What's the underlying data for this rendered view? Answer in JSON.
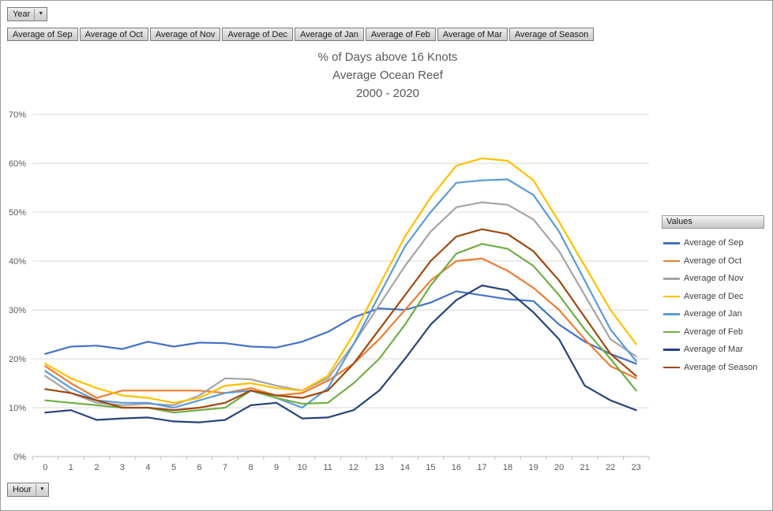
{
  "pivot_controls": {
    "year_button": {
      "label": "Year"
    },
    "hour_button": {
      "label": "Hour"
    },
    "field_buttons": [
      "Average of Sep",
      "Average of Oct",
      "Average of Nov",
      "Average of Dec",
      "Average of Jan",
      "Average of Feb",
      "Average of Mar",
      "Average of Season"
    ]
  },
  "legend": {
    "header": "Values"
  },
  "chart_data": {
    "type": "line",
    "title": "% of Days above 16 Knots",
    "subtitle": "Average Ocean Reef",
    "subtitle2": "2000 - 2020",
    "xlabel": "Hour",
    "ylabel": "",
    "x": [
      0,
      1,
      2,
      3,
      4,
      5,
      6,
      7,
      8,
      9,
      10,
      11,
      12,
      13,
      14,
      15,
      16,
      17,
      18,
      19,
      20,
      21,
      22,
      23
    ],
    "ylim": [
      0,
      70
    ],
    "yticks": [
      0,
      10,
      20,
      30,
      40,
      50,
      60,
      70
    ],
    "ytick_suffix": "%",
    "grid": true,
    "legend_position": "right",
    "series": [
      {
        "name": "Average of Sep",
        "color": "#4472C4",
        "values": [
          21,
          22.5,
          22.7,
          22,
          23.5,
          22.5,
          23.3,
          23.2,
          22.5,
          22.3,
          23.5,
          25.5,
          28.5,
          30.3,
          30,
          31.5,
          33.8,
          33,
          32.2,
          31.8,
          27,
          23.5,
          21,
          19
        ]
      },
      {
        "name": "Average of Oct",
        "color": "#ED7D31",
        "values": [
          18.5,
          15,
          12,
          13.5,
          13.5,
          13.5,
          13.5,
          13,
          14,
          12.5,
          13,
          15.5,
          19,
          24,
          30,
          36,
          40,
          40.5,
          38,
          34.5,
          30,
          24,
          18.5,
          16
        ]
      },
      {
        "name": "Average of Nov",
        "color": "#A5A5A5",
        "values": [
          16.5,
          13,
          11,
          10.5,
          10.8,
          10.5,
          12.5,
          16,
          15.8,
          14.5,
          13.5,
          16,
          23,
          31,
          39,
          46,
          51,
          52,
          51.5,
          48.5,
          42,
          33,
          24,
          20.5
        ]
      },
      {
        "name": "Average of Dec",
        "color": "#FFC000",
        "values": [
          19,
          16,
          14,
          12.5,
          12,
          11,
          12,
          14.5,
          15,
          14,
          13.5,
          16.5,
          25,
          35,
          45,
          53,
          59.5,
          61,
          60.5,
          56.5,
          48,
          39,
          30,
          23
        ]
      },
      {
        "name": "Average of Jan",
        "color": "#5B9BD5",
        "values": [
          17.5,
          14,
          11.5,
          11,
          11,
          10,
          11.5,
          13,
          13.5,
          12,
          10,
          14,
          23,
          33,
          43,
          50,
          56,
          56.5,
          56.7,
          53.5,
          46,
          36,
          26,
          19.5
        ]
      },
      {
        "name": "Average of Feb",
        "color": "#70AD47",
        "values": [
          11.5,
          11,
          10.5,
          10,
          10,
          9,
          9.5,
          10,
          13.5,
          12,
          10.8,
          11,
          15,
          20,
          27,
          35,
          41.5,
          43.5,
          42.5,
          39,
          33,
          26,
          20,
          13.5
        ]
      },
      {
        "name": "Average of Mar",
        "color": "#264478",
        "values": [
          9,
          9.5,
          7.5,
          7.8,
          8,
          7.2,
          7,
          7.5,
          10.5,
          11,
          7.8,
          8,
          9.5,
          13.5,
          20,
          27,
          32,
          35,
          34,
          29.5,
          24,
          14.5,
          11.5,
          9.5
        ]
      },
      {
        "name": "Average of Season",
        "color": "#9E480E",
        "values": [
          13.8,
          13,
          11.5,
          10,
          10,
          9.5,
          10,
          11,
          13.5,
          12.5,
          12,
          13.5,
          19,
          26,
          33,
          40,
          45,
          46.5,
          45.5,
          42,
          36,
          28.5,
          21,
          16.5
        ]
      }
    ]
  }
}
